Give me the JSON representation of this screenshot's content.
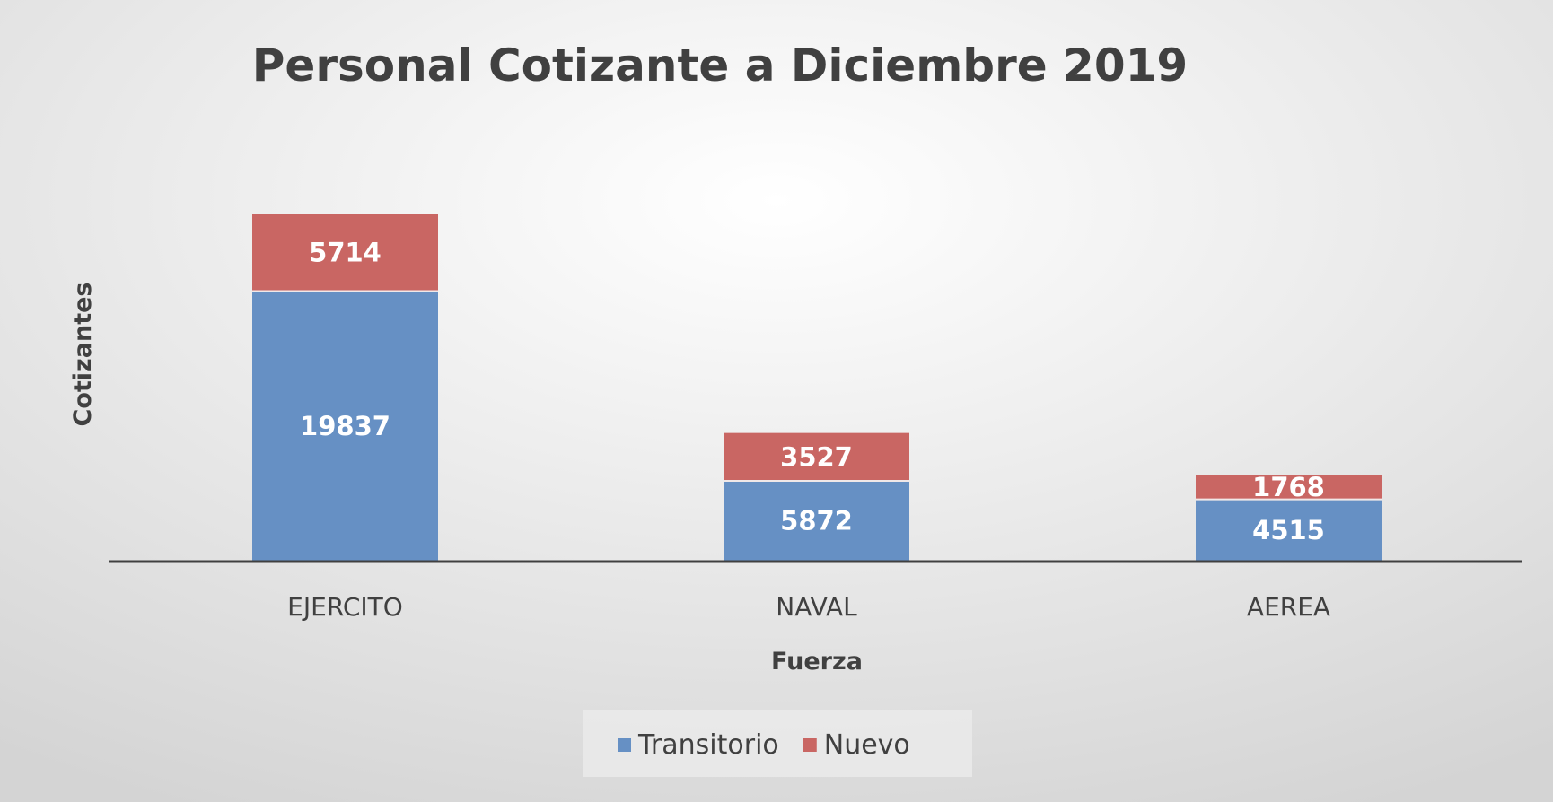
{
  "chart_data": {
    "type": "bar",
    "stacked": true,
    "title": "Personal Cotizante a Diciembre 2019",
    "xlabel": "Fuerza",
    "ylabel": "Cotizantes",
    "categories": [
      "EJERCITO",
      "NAVAL",
      "AEREA"
    ],
    "series": [
      {
        "name": "Transitorio",
        "values": [
          19837,
          5872,
          4515
        ],
        "color": "#6690C4"
      },
      {
        "name": "Nuevo",
        "values": [
          5714,
          3527,
          1768
        ],
        "color": "#C96663"
      }
    ],
    "data_labels": true,
    "grid": false,
    "legend": "bottom",
    "ylim": [
      0,
      25551
    ]
  }
}
